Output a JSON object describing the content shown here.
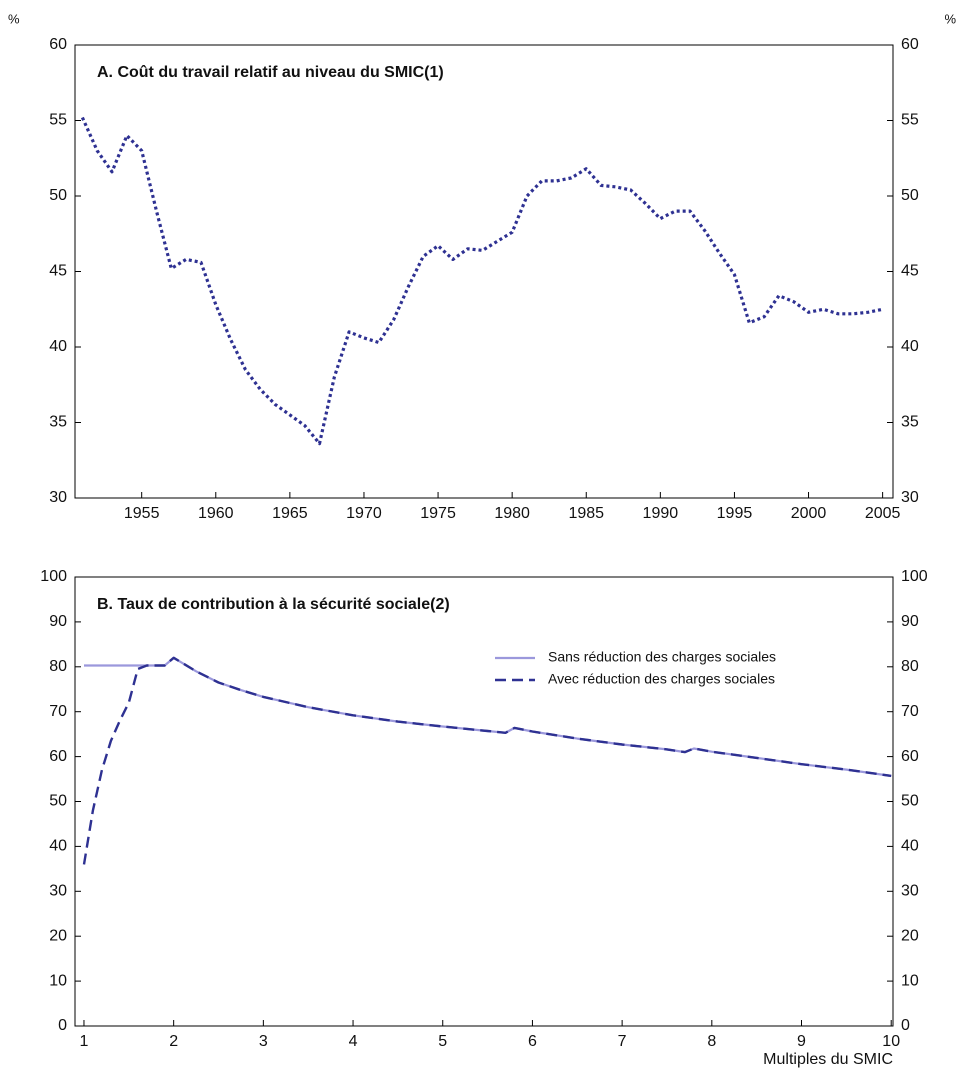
{
  "chart_data": [
    {
      "type": "line",
      "title": "A. Coût du travail relatif au niveau du SMIC(1)",
      "y_label": "%",
      "x": [
        1951,
        1952,
        1953,
        1954,
        1955,
        1956,
        1957,
        1958,
        1959,
        1960,
        1961,
        1962,
        1963,
        1964,
        1965,
        1966,
        1967,
        1968,
        1969,
        1970,
        1971,
        1972,
        1973,
        1974,
        1975,
        1976,
        1977,
        1978,
        1979,
        1980,
        1981,
        1982,
        1983,
        1984,
        1985,
        1986,
        1987,
        1988,
        1989,
        1990,
        1991,
        1992,
        1993,
        1994,
        1995,
        1996,
        1997,
        1998,
        1999,
        2000,
        2001,
        2002,
        2003,
        2004,
        2005
      ],
      "values": [
        55.2,
        53.0,
        51.6,
        54.0,
        53.0,
        49.0,
        45.2,
        45.8,
        45.6,
        42.8,
        40.5,
        38.5,
        37.2,
        36.2,
        35.5,
        34.8,
        33.6,
        38.0,
        41.0,
        40.6,
        40.3,
        41.8,
        44.0,
        46.0,
        46.7,
        45.8,
        46.5,
        46.4,
        47.0,
        47.6,
        50.0,
        51.0,
        51.0,
        51.2,
        51.8,
        50.7,
        50.6,
        50.4,
        49.5,
        48.5,
        49.0,
        49.0,
        47.7,
        46.2,
        44.8,
        41.6,
        42.0,
        43.4,
        43.0,
        42.3,
        42.5,
        42.2,
        42.2,
        42.3,
        42.5
      ],
      "color": "#2e3192",
      "line_style": "dotted",
      "xlim": [
        1950.5,
        2005.7
      ],
      "xticks": [
        1955,
        1960,
        1965,
        1970,
        1975,
        1980,
        1985,
        1990,
        1995,
        2000,
        2005
      ],
      "ylim": [
        30,
        60
      ],
      "yticks": [
        30,
        35,
        40,
        45,
        50,
        55,
        60
      ]
    },
    {
      "type": "line",
      "title": "B. Taux de contribution à la sécurité sociale(2)",
      "x_label": "Multiples du SMIC",
      "x": [
        1,
        1.1,
        1.2,
        1.3,
        1.4,
        1.5,
        1.6,
        1.7,
        1.8,
        1.9,
        2,
        2.25,
        2.5,
        2.75,
        3,
        3.5,
        4,
        4.5,
        5,
        5.5,
        5.7,
        5.8,
        6,
        6.5,
        7,
        7.5,
        7.7,
        7.8,
        8,
        8.5,
        9,
        9.5,
        10
      ],
      "series": [
        {
          "name": "Sans réduction des charges sociales",
          "color": "#9b98dc",
          "line_style": "solid",
          "values": [
            80.3,
            80.3,
            80.3,
            80.3,
            80.3,
            80.3,
            80.3,
            80.3,
            80.3,
            80.3,
            82.0,
            79,
            76.5,
            74.8,
            73.3,
            71,
            69.2,
            67.8,
            66.7,
            65.7,
            65.3,
            66.4,
            65.6,
            64,
            62.7,
            61.6,
            61.0,
            61.8,
            61.1,
            59.7,
            58.3,
            57.1,
            55.7
          ]
        },
        {
          "name": "Avec réduction des charges sociales",
          "color": "#2e3192",
          "line_style": "dashed",
          "values": [
            36,
            48,
            57,
            63.5,
            68,
            72,
            79.5,
            80.3,
            80.3,
            80.3,
            82.0,
            79,
            76.5,
            74.8,
            73.3,
            71,
            69.2,
            67.8,
            66.7,
            65.7,
            65.3,
            66.4,
            65.6,
            64,
            62.7,
            61.6,
            61.0,
            61.8,
            61.1,
            59.7,
            58.3,
            57.1,
            55.7
          ]
        }
      ],
      "legend": "upper right",
      "xlim": [
        0.9,
        10.02
      ],
      "xticks": [
        1,
        2,
        3,
        4,
        5,
        6,
        7,
        8,
        9,
        10
      ],
      "ylim": [
        0,
        100
      ],
      "yticks": [
        0,
        10,
        20,
        30,
        40,
        50,
        60,
        70,
        80,
        90,
        100
      ]
    }
  ]
}
